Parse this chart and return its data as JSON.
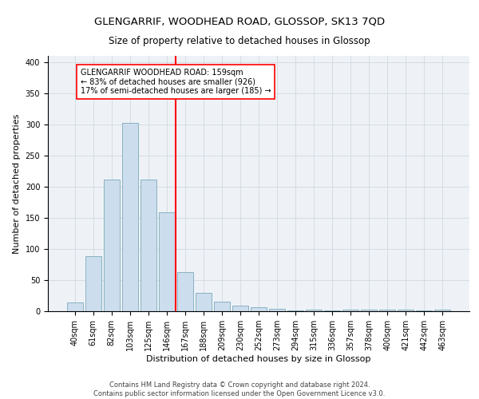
{
  "title": "GLENGARRIF, WOODHEAD ROAD, GLOSSOP, SK13 7QD",
  "subtitle": "Size of property relative to detached houses in Glossop",
  "xlabel": "Distribution of detached houses by size in Glossop",
  "ylabel": "Number of detached properties",
  "footer_line1": "Contains HM Land Registry data © Crown copyright and database right 2024.",
  "footer_line2": "Contains public sector information licensed under the Open Government Licence v3.0.",
  "bar_labels": [
    "40sqm",
    "61sqm",
    "82sqm",
    "103sqm",
    "125sqm",
    "146sqm",
    "167sqm",
    "188sqm",
    "209sqm",
    "230sqm",
    "252sqm",
    "273sqm",
    "294sqm",
    "315sqm",
    "336sqm",
    "357sqm",
    "378sqm",
    "400sqm",
    "421sqm",
    "442sqm",
    "463sqm"
  ],
  "bar_heights": [
    14,
    89,
    211,
    303,
    212,
    159,
    63,
    30,
    16,
    9,
    6,
    4,
    1,
    3,
    1,
    2,
    3,
    2,
    3,
    1,
    3
  ],
  "bar_color": "#ccdded",
  "bar_edgecolor": "#7aaabb",
  "vline_x": 6.0,
  "vline_color": "red",
  "annotation_text": "GLENGARRIF WOODHEAD ROAD: 159sqm\n← 83% of detached houses are smaller (926)\n17% of semi-detached houses are larger (185) →",
  "ylim": [
    0,
    410
  ],
  "yticks": [
    0,
    50,
    100,
    150,
    200,
    250,
    300,
    350,
    400
  ],
  "grid_color": "#d0d8e0",
  "background_color": "#eef2f7",
  "title_fontsize": 9.5,
  "subtitle_fontsize": 8.5,
  "tick_fontsize": 7,
  "ylabel_fontsize": 8,
  "xlabel_fontsize": 8,
  "footer_fontsize": 6,
  "annotation_fontsize": 7
}
